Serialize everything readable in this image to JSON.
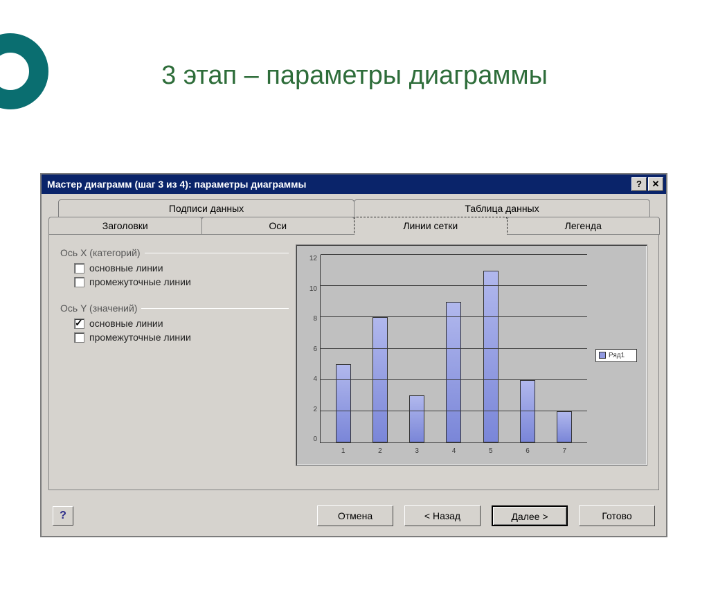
{
  "slide": {
    "title": "3 этап – параметры диаграммы"
  },
  "titlebar": {
    "text": "Мастер диаграмм (шаг 3 из 4): параметры диаграммы",
    "bg_color": "#0a246a",
    "text_color": "#ffffff"
  },
  "tabs": {
    "row1": [
      "Подписи данных",
      "Таблица данных"
    ],
    "row2": [
      "Заголовки",
      "Оси",
      "Линии сетки",
      "Легенда"
    ],
    "active": "Линии сетки"
  },
  "groups": {
    "x": {
      "label": "Ось X (категорий)",
      "major": {
        "label": "основные линии",
        "checked": false
      },
      "minor": {
        "label": "промежуточные линии",
        "checked": false
      }
    },
    "y": {
      "label": "Ось Y (значений)",
      "major": {
        "label": "основные линии",
        "checked": true
      },
      "minor": {
        "label": "промежуточные линии",
        "checked": false
      }
    }
  },
  "chart": {
    "type": "bar",
    "categories": [
      "1",
      "2",
      "3",
      "4",
      "5",
      "6",
      "7"
    ],
    "values": [
      5,
      8,
      3,
      9,
      11,
      4,
      2
    ],
    "ylim": [
      0,
      12
    ],
    "yticks": [
      0,
      2,
      4,
      6,
      8,
      10,
      12
    ],
    "bar_color": "#9099e0",
    "bar_border": "#333333",
    "grid_color": "#3a3a3a",
    "background_color": "#c0c0c0",
    "legend_label": "Ряд1",
    "label_fontsize": 10
  },
  "buttons": {
    "help": "?",
    "cancel": "Отмена",
    "back": "< Назад",
    "next": "Далее >",
    "finish": "Готово"
  },
  "colors": {
    "dialog_bg": "#d6d3ce",
    "accent_circle": "#0a6e70",
    "slide_title": "#2e6d3a"
  }
}
